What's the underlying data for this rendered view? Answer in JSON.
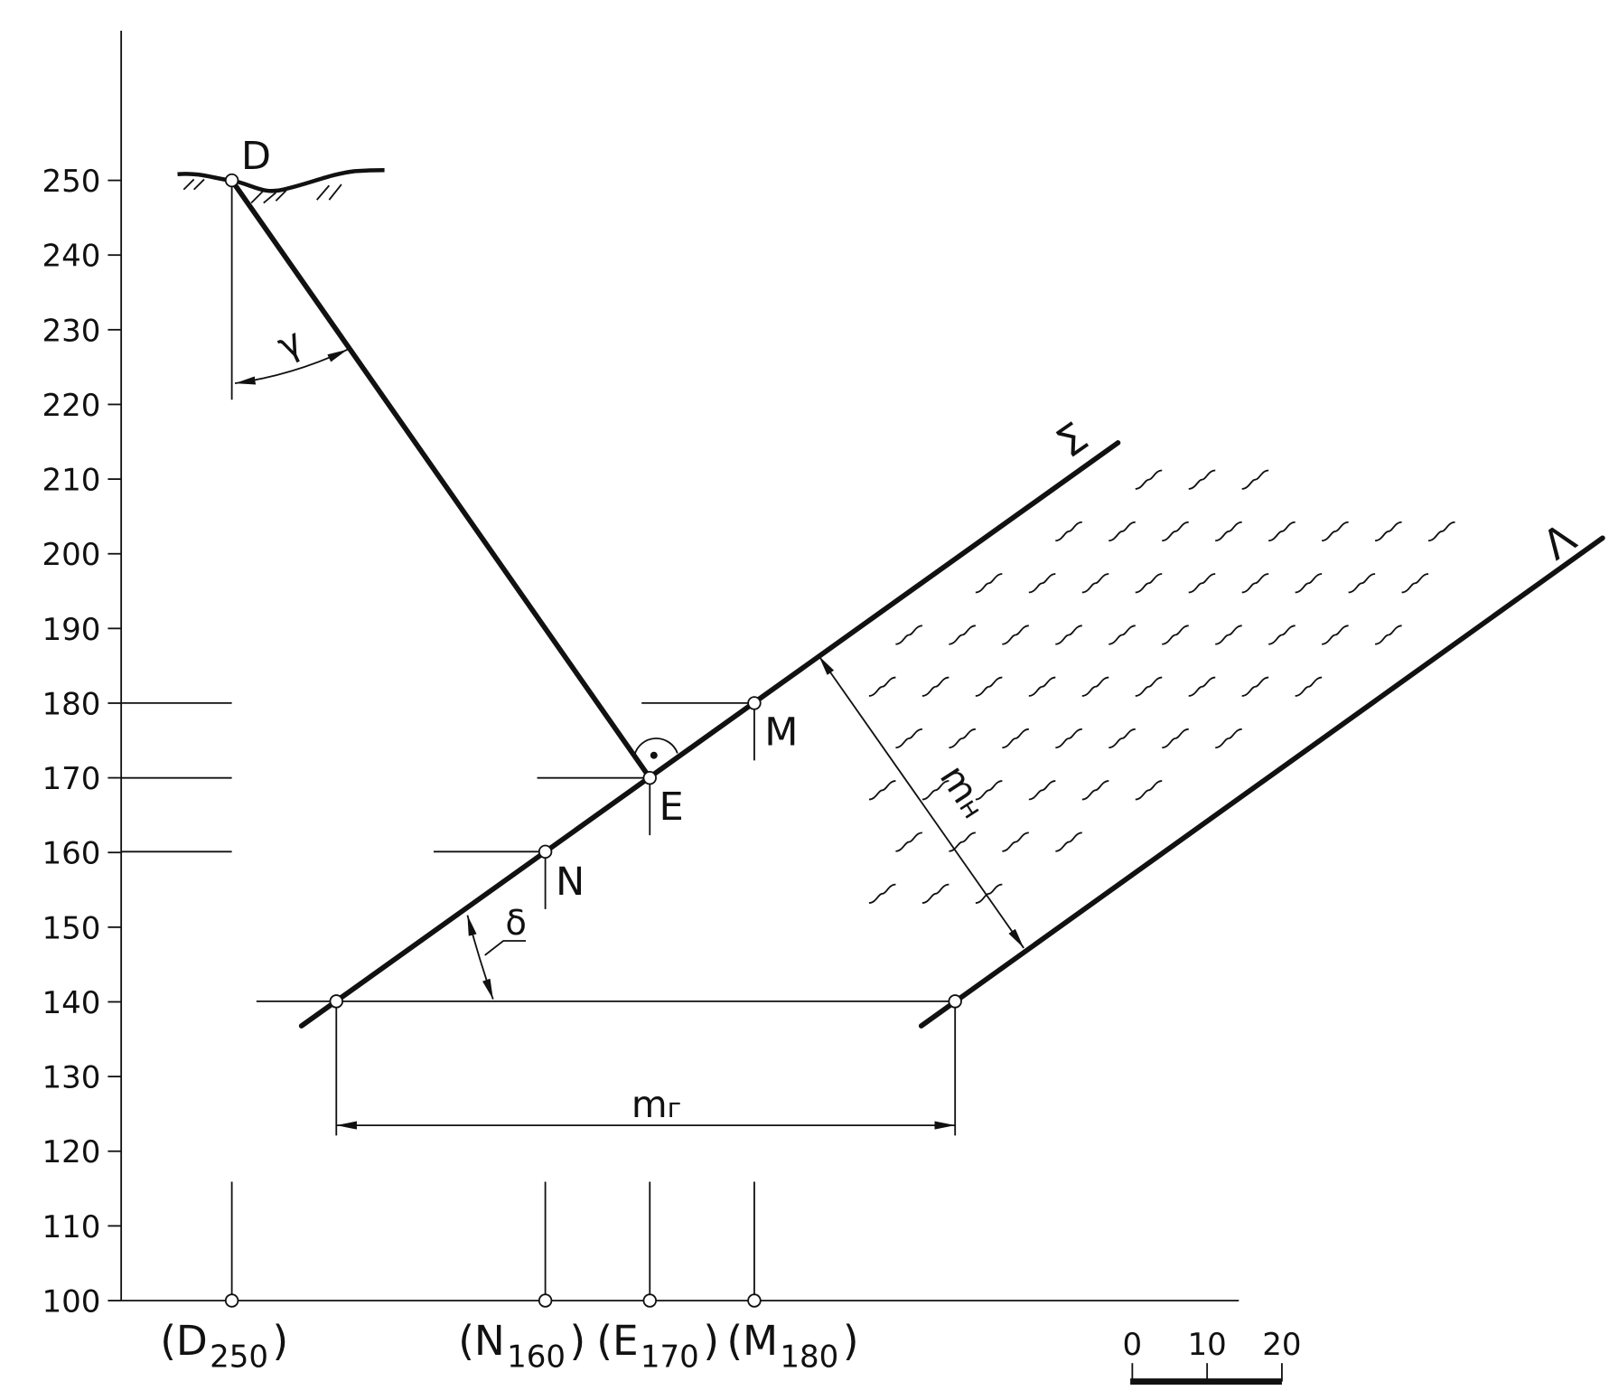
{
  "axis": {
    "ticks": [
      100,
      110,
      120,
      130,
      140,
      150,
      160,
      170,
      180,
      190,
      200,
      210,
      220,
      230,
      240,
      250
    ]
  },
  "points": [
    {
      "label": "D"
    },
    {
      "label": "E"
    },
    {
      "label": "M"
    },
    {
      "label": "N"
    }
  ],
  "angles": {
    "gamma": "γ",
    "delta": "δ"
  },
  "planes": {
    "sigma": "Σ",
    "lambda": "Λ"
  },
  "dimensions": {
    "true_thickness": {
      "text": "m",
      "sub": "н"
    },
    "horizontal_thickness": {
      "text": "m",
      "sub": "г"
    }
  },
  "projections": [
    {
      "open": "(D",
      "sub": "250",
      "close": ")"
    },
    {
      "open": "(N",
      "sub": "160",
      "close": ")"
    },
    {
      "open": "(E",
      "sub": "170",
      "close": ")"
    },
    {
      "open": "(M",
      "sub": "180",
      "close": ")"
    }
  ],
  "scale_bar": {
    "ticks": [
      0,
      10,
      20
    ]
  }
}
